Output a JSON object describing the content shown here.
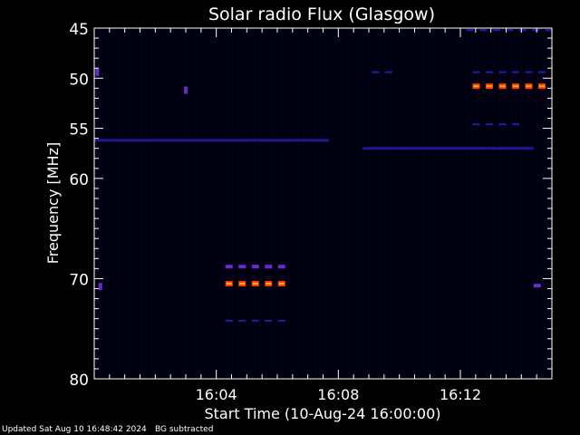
{
  "chart_data": {
    "type": "heatmap",
    "title": "Solar radio Flux (Glasgow)",
    "xlabel": "Start Time (10-Aug-24 16:00:00)",
    "ylabel": "Frequency [MHz]",
    "x_unit": "minutes after 16:00:00",
    "xlim": [
      0,
      15
    ],
    "ylim_reversed": [
      45,
      80
    ],
    "x_ticks": [
      {
        "value": 4,
        "label": "16:04"
      },
      {
        "value": 8,
        "label": "16:08"
      },
      {
        "value": 12,
        "label": "16:12"
      }
    ],
    "y_ticks": [
      {
        "value": 45,
        "label": "45"
      },
      {
        "value": 50,
        "label": "50"
      },
      {
        "value": 55,
        "label": "55"
      },
      {
        "value": 60,
        "label": "60"
      },
      {
        "value": 70,
        "label": "70"
      },
      {
        "value": 80,
        "label": "80"
      }
    ],
    "background_color": "#000010",
    "colors": {
      "weak": "#2a1aa8",
      "medium": "#6a2ad0",
      "strong": "#ff3a00",
      "peak": "#ffaa20"
    },
    "emission_features": [
      {
        "kind": "band",
        "freq_mhz": 56.2,
        "x_start": 0.0,
        "x_end": 7.7,
        "intensity": "weak"
      },
      {
        "kind": "band",
        "freq_mhz": 57.0,
        "x_start": 8.8,
        "x_end": 14.4,
        "intensity": "weak"
      },
      {
        "kind": "dashes",
        "freq_mhz": 68.8,
        "x_start": 4.3,
        "x_end": 6.4,
        "intensity": "medium"
      },
      {
        "kind": "dashes",
        "freq_mhz": 70.5,
        "x_start": 4.3,
        "x_end": 6.4,
        "intensity": "strong"
      },
      {
        "kind": "dashes",
        "freq_mhz": 74.2,
        "x_start": 4.3,
        "x_end": 6.4,
        "intensity": "weak"
      },
      {
        "kind": "dashes",
        "freq_mhz": 50.8,
        "x_start": 12.4,
        "x_end": 15.0,
        "intensity": "strong"
      },
      {
        "kind": "dashes",
        "freq_mhz": 49.4,
        "x_start": 12.4,
        "x_end": 15.0,
        "intensity": "weak"
      },
      {
        "kind": "dashes",
        "freq_mhz": 54.6,
        "x_start": 12.4,
        "x_end": 14.2,
        "intensity": "weak"
      },
      {
        "kind": "dashes",
        "freq_mhz": 45.2,
        "x_start": 12.2,
        "x_end": 15.0,
        "intensity": "weak"
      },
      {
        "kind": "dashes",
        "freq_mhz": 70.7,
        "x_start": 14.4,
        "x_end": 15.0,
        "intensity": "medium"
      },
      {
        "kind": "dashes",
        "freq_mhz": 49.4,
        "x_start": 9.1,
        "x_end": 9.9,
        "intensity": "weak"
      },
      {
        "kind": "spot",
        "freq_mhz": 49.4,
        "x": 0.1,
        "intensity": "medium"
      },
      {
        "kind": "spot",
        "freq_mhz": 51.2,
        "x": 3.0,
        "intensity": "medium"
      },
      {
        "kind": "spot",
        "freq_mhz": 70.8,
        "x": 0.2,
        "intensity": "medium"
      }
    ]
  },
  "footer": {
    "updated": "Updated Sat Aug 10 16:48:42 2024",
    "bg_note": "BG subtracted"
  }
}
